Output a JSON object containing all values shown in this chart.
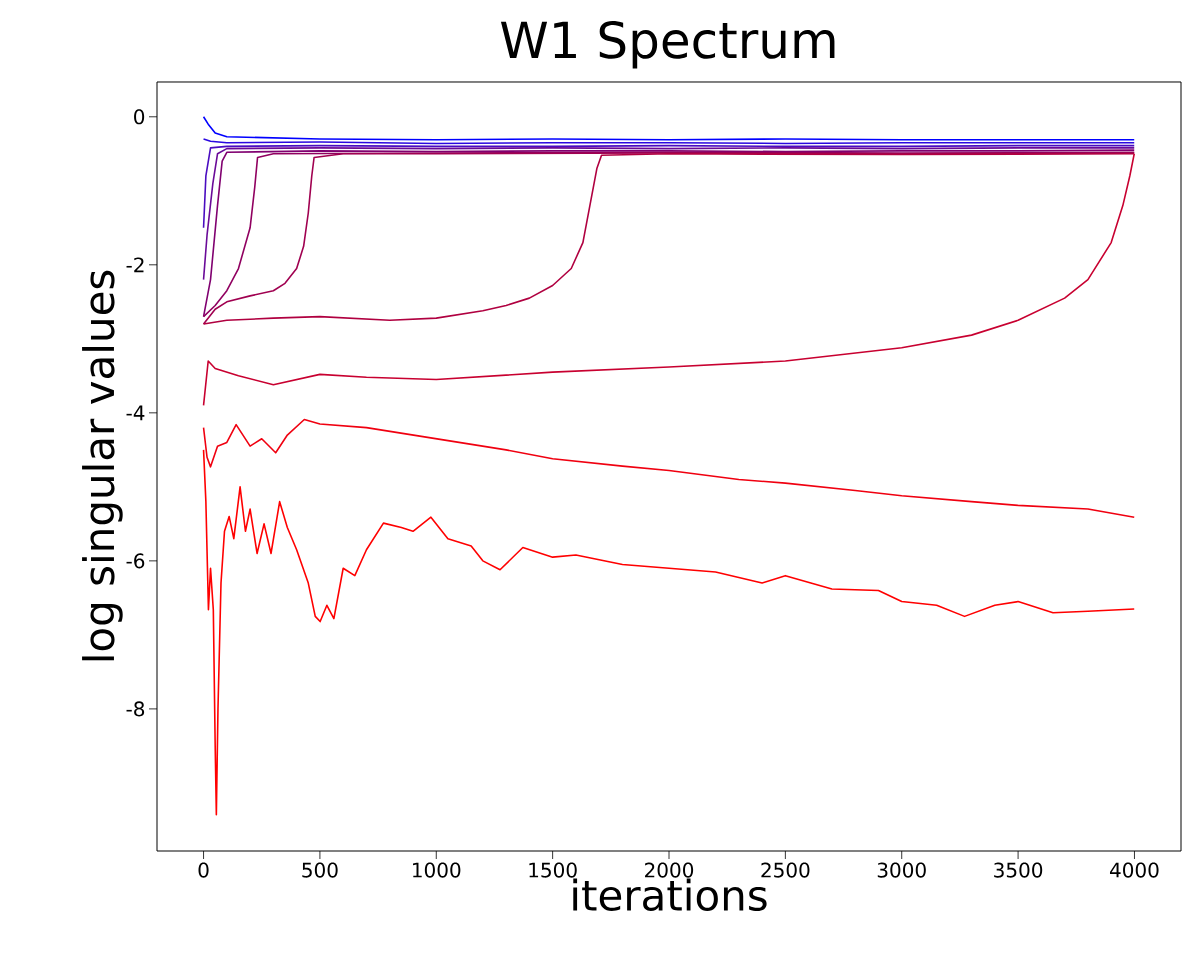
{
  "chart_data": {
    "type": "line",
    "title": "W1 Spectrum",
    "xlabel": "iterations",
    "ylabel": "log singular values",
    "xlim": [
      -200,
      4200
    ],
    "ylim": [
      -9.92,
      0.47
    ],
    "xticks": [
      0,
      500,
      1000,
      1500,
      2000,
      2500,
      3000,
      3500,
      4000
    ],
    "yticks": [
      -8,
      -6,
      -4,
      -2,
      0
    ],
    "series": [
      {
        "color": "#0000ff",
        "x": [
          0,
          20,
          50,
          100,
          500,
          1000,
          1500,
          2000,
          2500,
          3000,
          3500,
          3999
        ],
        "values": [
          0.0,
          -0.1,
          -0.22,
          -0.27,
          -0.3,
          -0.31,
          -0.3,
          -0.31,
          -0.3,
          -0.31,
          -0.31,
          -0.31
        ]
      },
      {
        "color": "#2a08e0",
        "x": [
          0,
          30,
          100,
          500,
          1000,
          1500,
          2000,
          2500,
          3000,
          3500,
          3999
        ],
        "values": [
          -0.3,
          -0.33,
          -0.35,
          -0.34,
          -0.36,
          -0.35,
          -0.35,
          -0.36,
          -0.35,
          -0.35,
          -0.35
        ]
      },
      {
        "color": "#4a0cc0",
        "x": [
          0,
          10,
          30,
          100,
          500,
          1000,
          1500,
          2000,
          2500,
          3000,
          3500,
          3999
        ],
        "values": [
          -1.5,
          -0.8,
          -0.42,
          -0.4,
          -0.39,
          -0.4,
          -0.4,
          -0.39,
          -0.4,
          -0.4,
          -0.39,
          -0.39
        ]
      },
      {
        "color": "#6a0a98",
        "x": [
          0,
          15,
          40,
          60,
          100,
          500,
          1000,
          1500,
          2000,
          2500,
          3000,
          3500,
          3999
        ],
        "values": [
          -2.2,
          -1.6,
          -0.9,
          -0.5,
          -0.43,
          -0.42,
          -0.43,
          -0.42,
          -0.43,
          -0.42,
          -0.43,
          -0.42,
          -0.42
        ]
      },
      {
        "color": "#800070",
        "x": [
          0,
          30,
          60,
          80,
          100,
          500,
          1000,
          1500,
          2000,
          2500,
          3000,
          3500,
          3999
        ],
        "values": [
          -2.7,
          -2.2,
          -1.2,
          -0.6,
          -0.48,
          -0.46,
          -0.47,
          -0.46,
          -0.46,
          -0.47,
          -0.46,
          -0.46,
          -0.45
        ]
      },
      {
        "color": "#900060",
        "x": [
          0,
          50,
          100,
          150,
          200,
          220,
          232,
          300,
          1000,
          2000,
          3000,
          3999
        ],
        "values": [
          -2.7,
          -2.55,
          -2.35,
          -2.05,
          -1.5,
          -0.95,
          -0.55,
          -0.5,
          -0.49,
          -0.48,
          -0.49,
          -0.48
        ]
      },
      {
        "color": "#a00050",
        "x": [
          0,
          50,
          100,
          200,
          300,
          350,
          400,
          430,
          450,
          465,
          475,
          600,
          1000,
          2000,
          3000,
          3999
        ],
        "values": [
          -2.8,
          -2.6,
          -2.5,
          -2.42,
          -2.35,
          -2.25,
          -2.05,
          -1.75,
          -1.3,
          -0.8,
          -0.55,
          -0.5,
          -0.5,
          -0.49,
          -0.5,
          -0.49
        ]
      },
      {
        "color": "#b00040",
        "x": [
          0,
          100,
          300,
          500,
          800,
          1000,
          1200,
          1300,
          1400,
          1500,
          1580,
          1630,
          1660,
          1690,
          1710,
          2000,
          3000,
          3999
        ],
        "values": [
          -2.8,
          -2.75,
          -2.72,
          -2.7,
          -2.75,
          -2.72,
          -2.62,
          -2.55,
          -2.45,
          -2.28,
          -2.05,
          -1.7,
          -1.2,
          -0.7,
          -0.52,
          -0.5,
          -0.51,
          -0.5
        ]
      },
      {
        "color": "#c80030",
        "x": [
          0,
          20,
          50,
          150,
          300,
          500,
          700,
          1000,
          1500,
          2000,
          2500,
          3000,
          3300,
          3500,
          3700,
          3800,
          3900,
          3950,
          3980,
          3999
        ],
        "values": [
          -3.9,
          -3.3,
          -3.4,
          -3.5,
          -3.62,
          -3.48,
          -3.52,
          -3.55,
          -3.45,
          -3.38,
          -3.3,
          -3.12,
          -2.95,
          -2.75,
          -2.45,
          -2.2,
          -1.7,
          -1.2,
          -0.8,
          -0.5
        ]
      },
      {
        "color": "#f00010",
        "x": [
          0,
          15,
          30,
          60,
          100,
          140,
          200,
          250,
          310,
          360,
          433,
          500,
          700,
          1000,
          1300,
          1500,
          1800,
          2000,
          2300,
          2500,
          2800,
          3000,
          3300,
          3500,
          3800,
          3999
        ],
        "values": [
          -4.2,
          -4.6,
          -4.73,
          -4.45,
          -4.4,
          -4.16,
          -4.45,
          -4.35,
          -4.54,
          -4.3,
          -4.09,
          -4.15,
          -4.2,
          -4.35,
          -4.5,
          -4.62,
          -4.72,
          -4.78,
          -4.9,
          -4.95,
          -5.05,
          -5.12,
          -5.2,
          -5.25,
          -5.3,
          -5.41
        ]
      },
      {
        "color": "#ff0000",
        "x": [
          0,
          10,
          21,
          30,
          42,
          50,
          55,
          62,
          75,
          90,
          110,
          130,
          157,
          180,
          200,
          230,
          260,
          290,
          327,
          360,
          400,
          450,
          480,
          501,
          530,
          560,
          600,
          650,
          700,
          773,
          850,
          900,
          977,
          1050,
          1150,
          1200,
          1274,
          1372,
          1500,
          1600,
          1800,
          2000,
          2200,
          2400,
          2500,
          2700,
          2900,
          3000,
          3150,
          3270,
          3400,
          3500,
          3650,
          3800,
          3999
        ],
        "values": [
          -4.5,
          -5.2,
          -6.66,
          -6.1,
          -6.66,
          -8.5,
          -9.43,
          -8.0,
          -6.3,
          -5.6,
          -5.4,
          -5.7,
          -5.0,
          -5.6,
          -5.3,
          -5.9,
          -5.5,
          -5.9,
          -5.2,
          -5.55,
          -5.85,
          -6.3,
          -6.75,
          -6.82,
          -6.6,
          -6.78,
          -6.1,
          -6.2,
          -5.85,
          -5.49,
          -5.55,
          -5.6,
          -5.41,
          -5.7,
          -5.8,
          -6.0,
          -6.12,
          -5.82,
          -5.95,
          -5.92,
          -6.05,
          -6.1,
          -6.15,
          -6.3,
          -6.2,
          -6.38,
          -6.4,
          -6.55,
          -6.6,
          -6.75,
          -6.6,
          -6.55,
          -6.7,
          -6.68,
          -6.65
        ]
      }
    ]
  }
}
